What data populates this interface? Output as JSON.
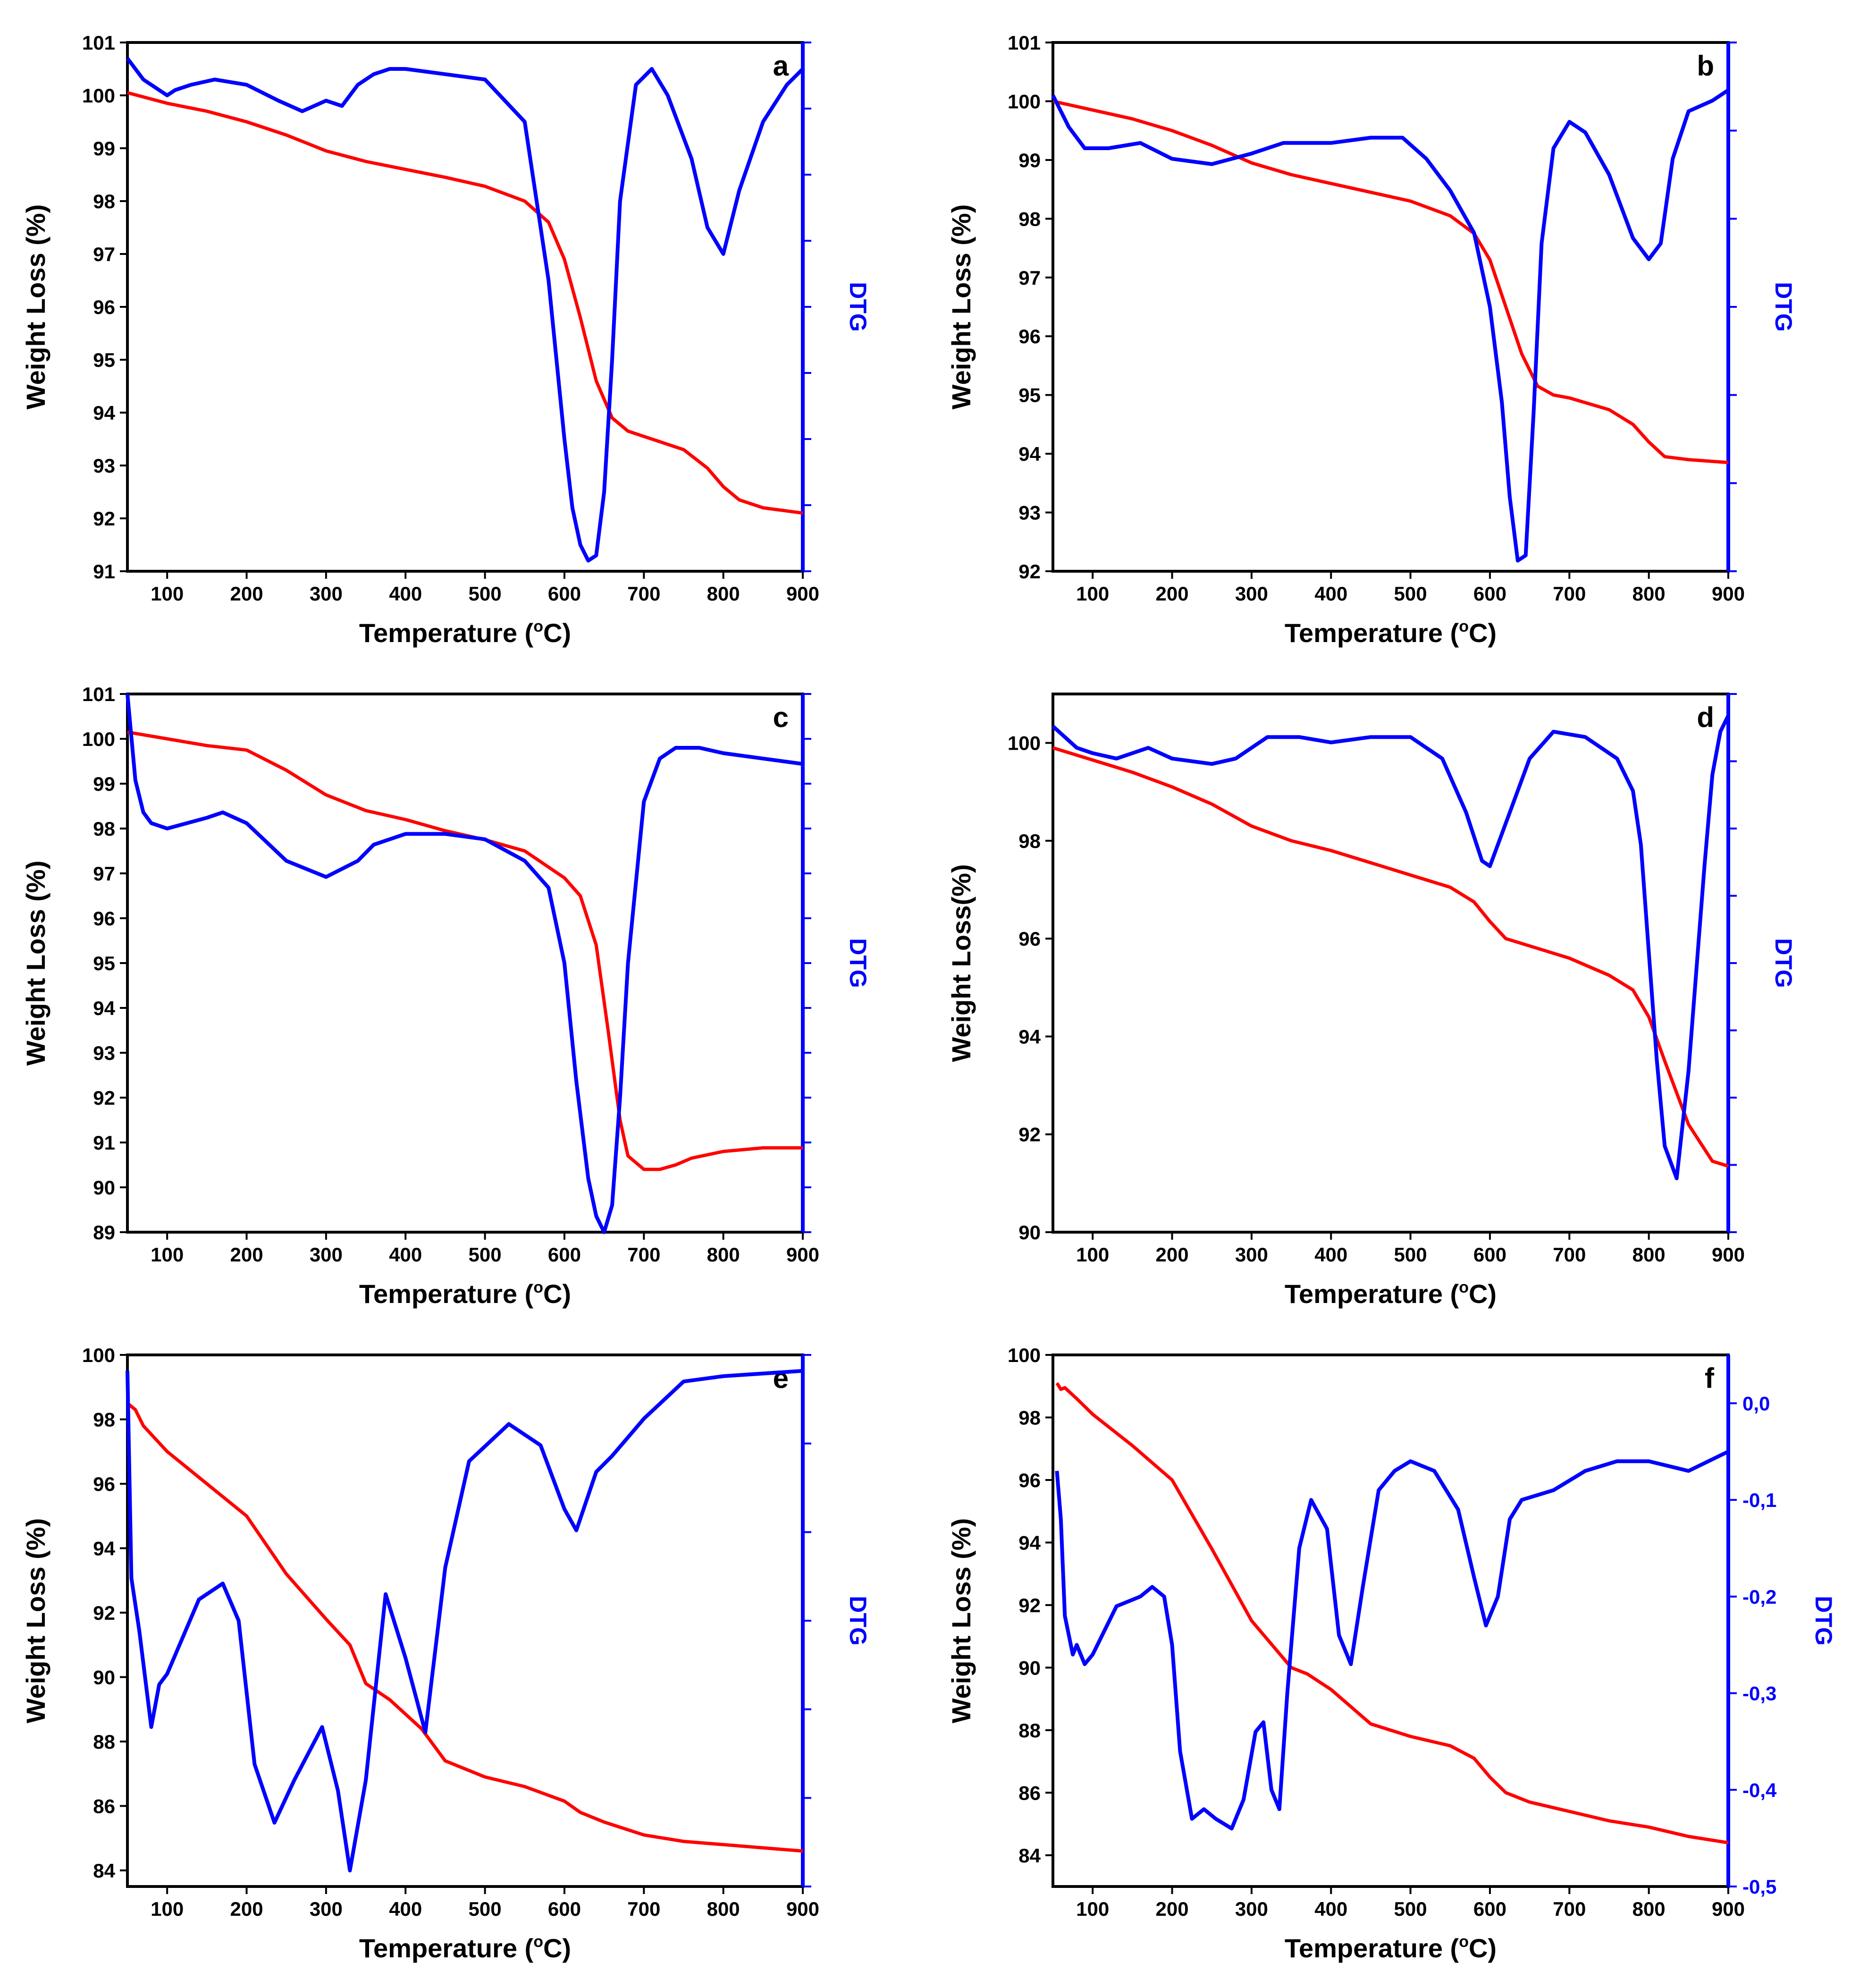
{
  "colors": {
    "weight_loss": "#ff0000",
    "dtg": "#0000ff",
    "axis": "#000000"
  },
  "chart_data": [
    {
      "panel": "a",
      "type": "line",
      "xlabel": "Temperature",
      "xunit": "C",
      "ylabel": "Weight Loss (%)",
      "y2label": "DTG",
      "xlim": [
        50,
        900
      ],
      "ylim": [
        91,
        101
      ],
      "xticks": [
        100,
        200,
        300,
        400,
        500,
        600,
        700,
        800,
        900
      ],
      "yticks": [
        91,
        92,
        93,
        94,
        95,
        96,
        97,
        98,
        99,
        100,
        101
      ],
      "dtg_ticks": 8,
      "dtg_tick_labels": [],
      "series": [
        {
          "name": "Weight Loss",
          "axis": "left",
          "x": [
            50,
            100,
            150,
            200,
            250,
            300,
            350,
            400,
            450,
            500,
            550,
            580,
            600,
            620,
            640,
            660,
            680,
            700,
            750,
            780,
            800,
            820,
            850,
            900
          ],
          "values": [
            100.05,
            99.85,
            99.7,
            99.5,
            99.25,
            98.95,
            98.75,
            98.6,
            98.45,
            98.28,
            98.0,
            97.6,
            96.9,
            95.8,
            94.6,
            93.9,
            93.65,
            93.55,
            93.3,
            92.95,
            92.6,
            92.35,
            92.2,
            92.1
          ]
        },
        {
          "name": "DTG",
          "axis": "right",
          "x": [
            50,
            70,
            90,
            100,
            110,
            130,
            160,
            200,
            240,
            270,
            300,
            320,
            340,
            360,
            380,
            400,
            450,
            500,
            550,
            580,
            600,
            610,
            620,
            630,
            640,
            650,
            660,
            670,
            690,
            710,
            730,
            760,
            780,
            800,
            820,
            850,
            880,
            900
          ],
          "values": [
            0.97,
            0.93,
            0.91,
            0.9,
            0.91,
            0.92,
            0.93,
            0.92,
            0.89,
            0.87,
            0.89,
            0.88,
            0.92,
            0.94,
            0.95,
            0.95,
            0.94,
            0.93,
            0.85,
            0.55,
            0.25,
            0.12,
            0.05,
            0.02,
            0.03,
            0.15,
            0.4,
            0.7,
            0.92,
            0.95,
            0.9,
            0.78,
            0.65,
            0.6,
            0.72,
            0.85,
            0.92,
            0.95
          ]
        }
      ]
    },
    {
      "panel": "b",
      "type": "line",
      "xlabel": "Temperature",
      "xunit": "C",
      "ylabel": "Weight Loss (%)",
      "y2label": "DTG",
      "xlim": [
        50,
        900
      ],
      "ylim": [
        92,
        101
      ],
      "xticks": [
        100,
        200,
        300,
        400,
        500,
        600,
        700,
        800,
        900
      ],
      "yticks": [
        92,
        93,
        94,
        95,
        96,
        97,
        98,
        99,
        100,
        101
      ],
      "dtg_ticks": 6,
      "dtg_tick_labels": [],
      "series": [
        {
          "name": "Weight Loss",
          "axis": "left",
          "x": [
            50,
            100,
            150,
            200,
            250,
            300,
            350,
            400,
            450,
            500,
            550,
            580,
            600,
            620,
            640,
            660,
            680,
            700,
            750,
            780,
            800,
            820,
            850,
            900
          ],
          "values": [
            100.0,
            99.85,
            99.7,
            99.5,
            99.25,
            98.95,
            98.75,
            98.6,
            98.45,
            98.3,
            98.05,
            97.75,
            97.3,
            96.5,
            95.7,
            95.15,
            95.0,
            94.95,
            94.75,
            94.5,
            94.2,
            93.95,
            93.9,
            93.85
          ]
        },
        {
          "name": "DTG",
          "axis": "right",
          "x": [
            50,
            70,
            90,
            120,
            160,
            200,
            250,
            300,
            340,
            360,
            400,
            450,
            490,
            520,
            550,
            580,
            600,
            615,
            625,
            635,
            645,
            655,
            665,
            680,
            700,
            720,
            750,
            780,
            800,
            815,
            830,
            850,
            880,
            900
          ],
          "values": [
            0.9,
            0.84,
            0.8,
            0.8,
            0.81,
            0.78,
            0.77,
            0.79,
            0.81,
            0.81,
            0.81,
            0.82,
            0.82,
            0.78,
            0.72,
            0.64,
            0.5,
            0.32,
            0.14,
            0.02,
            0.03,
            0.3,
            0.62,
            0.8,
            0.85,
            0.83,
            0.75,
            0.63,
            0.59,
            0.62,
            0.78,
            0.87,
            0.89,
            0.91
          ]
        }
      ]
    },
    {
      "panel": "c",
      "type": "line",
      "xlabel": "Temperature",
      "xunit": "C",
      "ylabel": "Weight Loss (%)",
      "y2label": "DTG",
      "xlim": [
        50,
        900
      ],
      "ylim": [
        89,
        101
      ],
      "xticks": [
        100,
        200,
        300,
        400,
        500,
        600,
        700,
        800,
        900
      ],
      "yticks": [
        89,
        90,
        91,
        92,
        93,
        94,
        95,
        96,
        97,
        98,
        99,
        100,
        101
      ],
      "dtg_ticks": 12,
      "dtg_tick_labels": [],
      "series": [
        {
          "name": "Weight Loss",
          "axis": "left",
          "x": [
            50,
            100,
            150,
            200,
            250,
            300,
            350,
            400,
            450,
            500,
            550,
            600,
            620,
            640,
            655,
            670,
            680,
            700,
            720,
            740,
            760,
            800,
            850,
            900
          ],
          "values": [
            100.15,
            100.0,
            99.85,
            99.75,
            99.3,
            98.75,
            98.4,
            98.2,
            97.95,
            97.75,
            97.5,
            96.9,
            96.5,
            95.4,
            93.5,
            91.5,
            90.7,
            90.4,
            90.4,
            90.5,
            90.65,
            90.8,
            90.88,
            90.88
          ]
        },
        {
          "name": "DTG",
          "axis": "right",
          "x": [
            50,
            55,
            60,
            70,
            80,
            100,
            150,
            170,
            200,
            250,
            300,
            340,
            360,
            400,
            450,
            500,
            550,
            580,
            600,
            615,
            630,
            640,
            650,
            660,
            670,
            680,
            700,
            720,
            740,
            770,
            800,
            850,
            900
          ],
          "values": [
            1.0,
            0.92,
            0.84,
            0.78,
            0.76,
            0.75,
            0.77,
            0.78,
            0.76,
            0.69,
            0.66,
            0.69,
            0.72,
            0.74,
            0.74,
            0.73,
            0.69,
            0.64,
            0.5,
            0.28,
            0.1,
            0.03,
            0.0,
            0.05,
            0.25,
            0.5,
            0.8,
            0.88,
            0.9,
            0.9,
            0.89,
            0.88,
            0.87
          ]
        }
      ]
    },
    {
      "panel": "d",
      "type": "line",
      "xlabel": "Temperature",
      "xunit": "C",
      "ylabel": "Weight Loss(%)",
      "y2label": "DTG",
      "xlim": [
        50,
        900
      ],
      "ylim": [
        90,
        101
      ],
      "xticks": [
        100,
        200,
        300,
        400,
        500,
        600,
        700,
        800,
        900
      ],
      "yticks": [
        90,
        92,
        94,
        96,
        98,
        100
      ],
      "dtg_ticks": 8,
      "dtg_tick_labels": [],
      "series": [
        {
          "name": "Weight Loss",
          "axis": "left",
          "x": [
            50,
            100,
            150,
            200,
            250,
            300,
            350,
            400,
            450,
            500,
            550,
            580,
            600,
            620,
            650,
            700,
            750,
            780,
            800,
            820,
            850,
            880,
            900
          ],
          "values": [
            99.9,
            99.65,
            99.4,
            99.1,
            98.75,
            98.3,
            98.0,
            97.8,
            97.55,
            97.3,
            97.05,
            96.75,
            96.35,
            96.0,
            95.85,
            95.6,
            95.25,
            94.95,
            94.4,
            93.5,
            92.2,
            91.45,
            91.35
          ]
        },
        {
          "name": "DTG",
          "axis": "right",
          "x": [
            50,
            80,
            100,
            130,
            170,
            200,
            250,
            280,
            320,
            360,
            400,
            450,
            500,
            540,
            570,
            590,
            600,
            620,
            650,
            680,
            720,
            760,
            780,
            790,
            800,
            810,
            820,
            835,
            850,
            870,
            880,
            890,
            900
          ],
          "values": [
            0.94,
            0.9,
            0.89,
            0.88,
            0.9,
            0.88,
            0.87,
            0.88,
            0.92,
            0.92,
            0.91,
            0.92,
            0.92,
            0.88,
            0.78,
            0.69,
            0.68,
            0.76,
            0.88,
            0.93,
            0.92,
            0.88,
            0.82,
            0.72,
            0.52,
            0.32,
            0.16,
            0.1,
            0.3,
            0.68,
            0.85,
            0.93,
            0.96
          ]
        }
      ]
    },
    {
      "panel": "e",
      "type": "line",
      "xlabel": "Temperature",
      "xunit": "C",
      "ylabel": "Weight Loss (%)",
      "y2label": "DTG",
      "xlim": [
        50,
        900
      ],
      "ylim": [
        83.5,
        100
      ],
      "xticks": [
        100,
        200,
        300,
        400,
        500,
        600,
        700,
        800,
        900
      ],
      "yticks": [
        84,
        86,
        88,
        90,
        92,
        94,
        96,
        98,
        100
      ],
      "dtg_ticks": 6,
      "dtg_tick_labels": [],
      "series": [
        {
          "name": "Weight Loss",
          "axis": "left",
          "x": [
            50,
            60,
            70,
            100,
            150,
            200,
            250,
            300,
            330,
            350,
            380,
            420,
            450,
            500,
            550,
            600,
            620,
            650,
            700,
            750,
            800,
            850,
            900
          ],
          "values": [
            98.5,
            98.3,
            97.8,
            97.0,
            96.0,
            95.0,
            93.2,
            91.8,
            91.0,
            89.8,
            89.3,
            88.4,
            87.4,
            86.9,
            86.6,
            86.15,
            85.8,
            85.5,
            85.1,
            84.9,
            84.8,
            84.7,
            84.6
          ]
        },
        {
          "name": "DTG",
          "axis": "right",
          "x": [
            50,
            55,
            65,
            80,
            90,
            100,
            140,
            170,
            190,
            210,
            235,
            260,
            295,
            315,
            330,
            350,
            375,
            400,
            425,
            450,
            480,
            530,
            570,
            600,
            615,
            640,
            660,
            700,
            750,
            800,
            900
          ],
          "values": [
            0.97,
            0.58,
            0.48,
            0.3,
            0.38,
            0.4,
            0.54,
            0.57,
            0.5,
            0.23,
            0.12,
            0.2,
            0.3,
            0.18,
            0.03,
            0.2,
            0.55,
            0.43,
            0.29,
            0.6,
            0.8,
            0.87,
            0.83,
            0.71,
            0.67,
            0.78,
            0.81,
            0.88,
            0.95,
            0.96,
            0.97
          ]
        }
      ]
    },
    {
      "panel": "f",
      "type": "line",
      "xlabel": "Temperature",
      "xunit": "C",
      "ylabel": "Weight Loss (%)",
      "y2label": "DTG",
      "xlim": [
        50,
        900
      ],
      "ylim": [
        83,
        100
      ],
      "xticks": [
        100,
        200,
        300,
        400,
        500,
        600,
        700,
        800,
        900
      ],
      "yticks": [
        84,
        86,
        88,
        90,
        92,
        94,
        96,
        98,
        100
      ],
      "y2lim": [
        -0.5,
        0.05
      ],
      "dtg_ticks": 7,
      "dtg_tick_labels": [
        "0,0",
        "-0,1",
        "-0,2",
        "-0,3",
        "-0,4",
        "-0,5"
      ],
      "dtg_tick_values": [
        0.0,
        -0.1,
        -0.2,
        -0.3,
        -0.4,
        -0.5
      ],
      "series": [
        {
          "name": "Weight Loss",
          "axis": "left",
          "x": [
            55,
            60,
            65,
            80,
            100,
            150,
            200,
            250,
            300,
            350,
            370,
            400,
            450,
            500,
            550,
            580,
            600,
            620,
            650,
            700,
            750,
            800,
            850,
            900
          ],
          "values": [
            99.1,
            98.9,
            98.95,
            98.6,
            98.1,
            97.1,
            96.0,
            93.8,
            91.5,
            90.0,
            89.8,
            89.3,
            88.2,
            87.8,
            87.5,
            87.1,
            86.5,
            86.0,
            85.7,
            85.4,
            85.1,
            84.9,
            84.6,
            84.4
          ]
        },
        {
          "name": "DTG",
          "axis": "right",
          "x": [
            55,
            60,
            65,
            70,
            75,
            80,
            85,
            90,
            100,
            130,
            160,
            175,
            190,
            200,
            210,
            225,
            240,
            255,
            275,
            290,
            305,
            315,
            325,
            335,
            345,
            360,
            375,
            395,
            410,
            425,
            440,
            460,
            480,
            500,
            530,
            560,
            580,
            595,
            610,
            625,
            640,
            680,
            720,
            760,
            800,
            850,
            900
          ],
          "values": [
            -0.07,
            -0.12,
            -0.22,
            -0.24,
            -0.26,
            -0.25,
            -0.26,
            -0.27,
            -0.26,
            -0.21,
            -0.2,
            -0.19,
            -0.2,
            -0.25,
            -0.36,
            -0.43,
            -0.42,
            -0.43,
            -0.44,
            -0.41,
            -0.34,
            -0.33,
            -0.4,
            -0.42,
            -0.3,
            -0.15,
            -0.1,
            -0.13,
            -0.24,
            -0.27,
            -0.19,
            -0.09,
            -0.07,
            -0.06,
            -0.07,
            -0.11,
            -0.18,
            -0.23,
            -0.2,
            -0.12,
            -0.1,
            -0.09,
            -0.07,
            -0.06,
            -0.06,
            -0.07,
            -0.05
          ]
        }
      ]
    }
  ]
}
